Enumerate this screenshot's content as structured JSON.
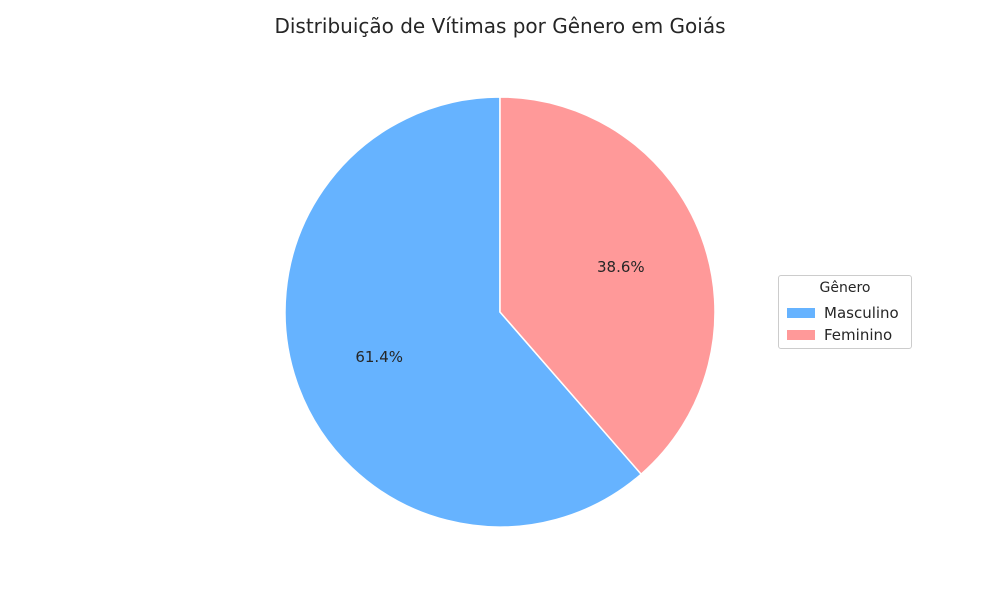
{
  "chart_data": {
    "type": "pie",
    "title": "Distribuição de Vítimas por Gênero em Goiás",
    "categories": [
      "Masculino",
      "Feminino"
    ],
    "values": [
      61.4,
      38.6
    ],
    "labels": [
      "61.4%",
      "38.6%"
    ],
    "colors": [
      "#66b3ff",
      "#ff9999"
    ],
    "start_angle": 90,
    "direction": "counterclockwise",
    "legend": {
      "title": "Gênero",
      "placement": "center-right"
    }
  }
}
